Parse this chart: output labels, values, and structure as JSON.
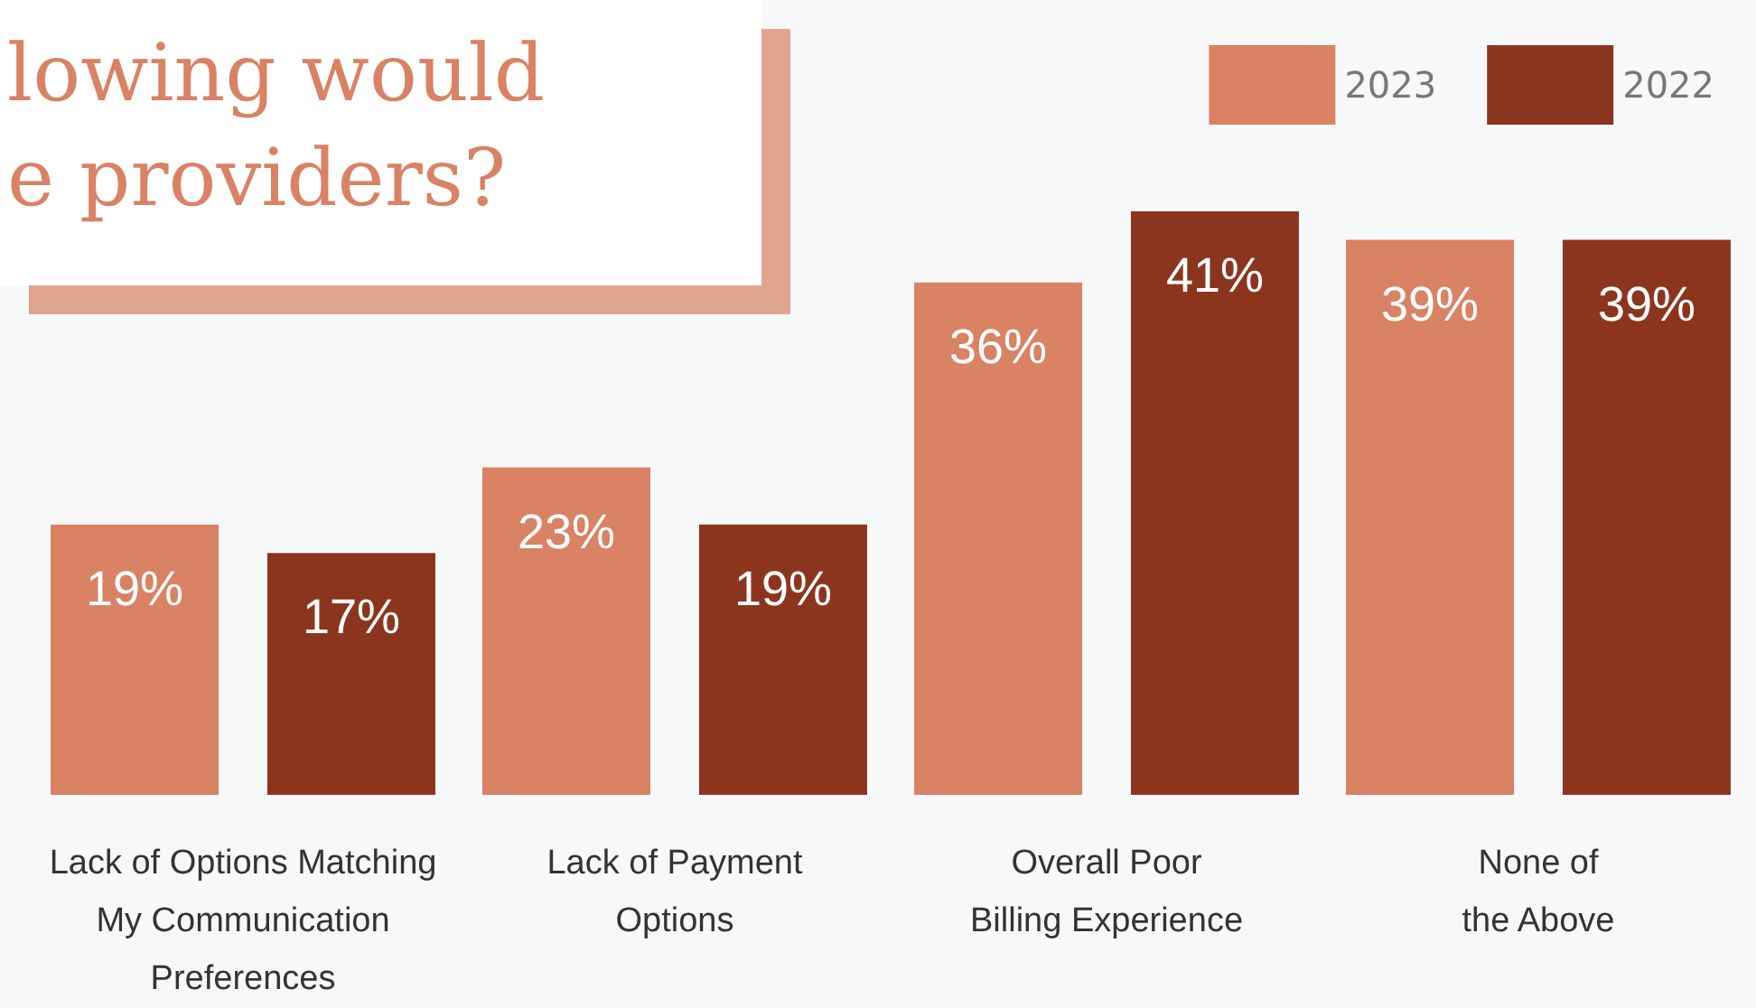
{
  "chart_data": {
    "type": "bar",
    "title": "lowing would\ne providers?",
    "categories": [
      "Lack of Options Matching\nMy Communication\nPreferences",
      "Lack of Payment\nOptions",
      "Overall Poor\nBilling Experience",
      "None of\nthe Above"
    ],
    "series": [
      {
        "name": "2023",
        "color": "#d98264",
        "values": [
          19,
          23,
          36,
          39
        ],
        "value_labels": [
          "19%",
          "23%",
          "36%",
          "39%"
        ]
      },
      {
        "name": "2022",
        "color": "#8c351e",
        "values": [
          17,
          19,
          41,
          39
        ],
        "value_labels": [
          "17%",
          "19%",
          "41%",
          "39%"
        ]
      }
    ],
    "legend": "top right"
  }
}
